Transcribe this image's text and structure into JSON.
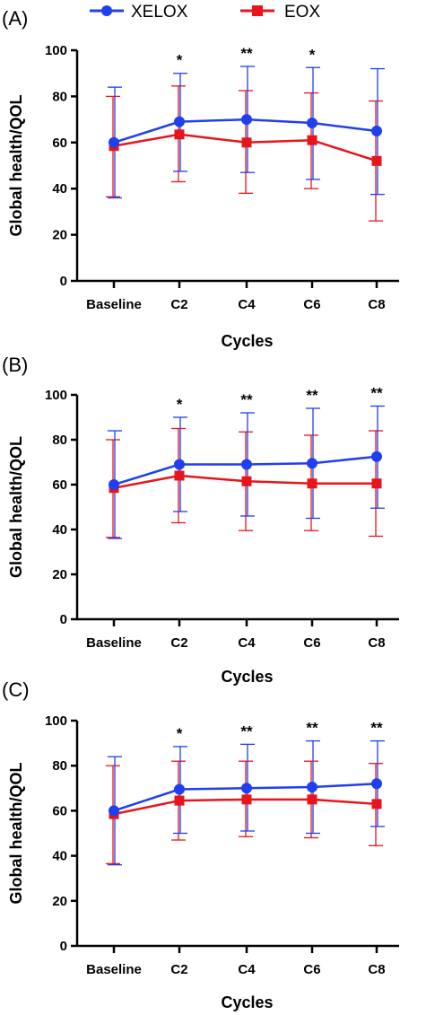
{
  "legend": [
    {
      "name": "XELOX",
      "color": "#1f3ff0",
      "marker": "circle"
    },
    {
      "name": "EOX",
      "color": "#e8141c",
      "marker": "square"
    }
  ],
  "chart_data": [
    {
      "type": "line",
      "panel_label": "(A)",
      "xlabel": "Cycles",
      "ylabel": "Global health/QOL",
      "categories": [
        "Baseline",
        "C2",
        "C4",
        "C6",
        "C8"
      ],
      "ylim": [
        0,
        100
      ],
      "yticks": [
        0,
        20,
        40,
        60,
        80,
        100
      ],
      "significance": [
        "",
        "*",
        "**",
        "*",
        ""
      ],
      "series": [
        {
          "name": "XELOX",
          "color": "#1f3ff0",
          "marker": "circle",
          "values": [
            60,
            69,
            70,
            68.5,
            65
          ],
          "err_low": [
            36,
            47.5,
            47,
            44,
            37.5
          ],
          "err_high": [
            84,
            90,
            93,
            92.5,
            92
          ]
        },
        {
          "name": "EOX",
          "color": "#e8141c",
          "marker": "square",
          "values": [
            58.5,
            63.5,
            60,
            61,
            52
          ],
          "err_low": [
            36.5,
            43,
            38,
            40,
            26
          ],
          "err_high": [
            80,
            84.5,
            82.5,
            81.5,
            78
          ]
        }
      ]
    },
    {
      "type": "line",
      "panel_label": "(B)",
      "xlabel": "Cycles",
      "ylabel": "Global health/QOL",
      "categories": [
        "Baseline",
        "C2",
        "C4",
        "C6",
        "C8"
      ],
      "ylim": [
        0,
        100
      ],
      "yticks": [
        0,
        20,
        40,
        60,
        80,
        100
      ],
      "significance": [
        "",
        "*",
        "**",
        "**",
        "**"
      ],
      "series": [
        {
          "name": "XELOX",
          "color": "#1f3ff0",
          "marker": "circle",
          "values": [
            60,
            69,
            69,
            69.5,
            72.5
          ],
          "err_low": [
            36,
            48,
            46,
            45,
            49.5
          ],
          "err_high": [
            84,
            90,
            92,
            94,
            95
          ]
        },
        {
          "name": "EOX",
          "color": "#e8141c",
          "marker": "square",
          "values": [
            58.5,
            64,
            61.5,
            60.5,
            60.5
          ],
          "err_low": [
            36.5,
            43,
            39.5,
            39.5,
            37
          ],
          "err_high": [
            80,
            85,
            83.5,
            82,
            84
          ]
        }
      ]
    },
    {
      "type": "line",
      "panel_label": "(C)",
      "xlabel": "Cycles",
      "ylabel": "Global health/QOL",
      "categories": [
        "Baseline",
        "C2",
        "C4",
        "C6",
        "C8"
      ],
      "ylim": [
        0,
        100
      ],
      "yticks": [
        0,
        20,
        40,
        60,
        80,
        100
      ],
      "significance": [
        "",
        "*",
        "**",
        "**",
        "**"
      ],
      "series": [
        {
          "name": "XELOX",
          "color": "#1f3ff0",
          "marker": "circle",
          "values": [
            60,
            69.5,
            70,
            70.5,
            72
          ],
          "err_low": [
            36,
            50,
            51,
            50,
            53
          ],
          "err_high": [
            84,
            88.5,
            89.5,
            91,
            91
          ]
        },
        {
          "name": "EOX",
          "color": "#e8141c",
          "marker": "square",
          "values": [
            58.5,
            64.5,
            65,
            65,
            63
          ],
          "err_low": [
            36.5,
            47,
            48.5,
            48,
            44.5
          ],
          "err_high": [
            80,
            82,
            82,
            82,
            81
          ]
        }
      ]
    }
  ]
}
